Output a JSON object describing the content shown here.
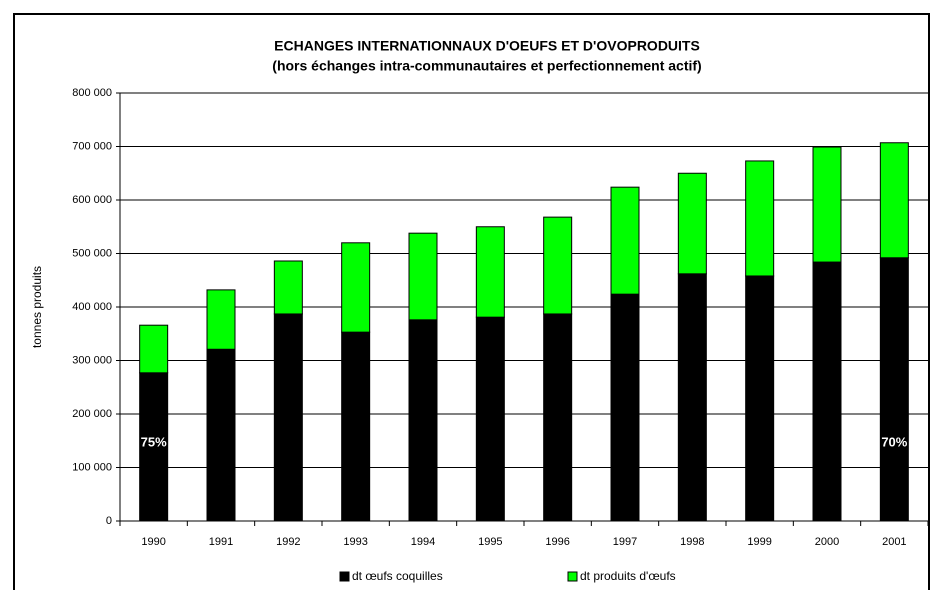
{
  "chart_data": {
    "type": "stacked_bar",
    "title": "ECHANGES INTERNATIONNAUX D'OEUFS ET D'OVOPRODUITS",
    "subtitle": "(hors échanges intra-communautaires et perfectionnement actif)",
    "y_label": "tonnes produits",
    "categories": [
      "1990",
      "1991",
      "1992",
      "1993",
      "1994",
      "1995",
      "1996",
      "1997",
      "1998",
      "1999",
      "2000",
      "2001"
    ],
    "series": [
      {
        "name": "dt œufs coquilles",
        "color": "#000000",
        "values": [
          277000,
          321000,
          387000,
          353000,
          376000,
          381000,
          387000,
          424000,
          462000,
          458000,
          484000,
          492000
        ]
      },
      {
        "name": "dt produits d'œufs",
        "color": "#00ff00",
        "values": [
          89000,
          111000,
          99000,
          167000,
          162000,
          169000,
          181000,
          200000,
          188000,
          215000,
          215000,
          215000
        ]
      }
    ],
    "annotations": [
      {
        "text": "75%",
        "category": "1990"
      },
      {
        "text": "70%",
        "category": "2001"
      }
    ],
    "ylim": [
      0,
      800000
    ],
    "yticks": [
      0,
      {
        "value": 100000,
        "label": "100 000"
      },
      {
        "value": 200000,
        "label": "200 000"
      },
      {
        "value": 300000,
        "label": "300 000"
      },
      {
        "value": 400000,
        "label": "400 000"
      },
      {
        "value": 500000,
        "label": "500 000"
      },
      {
        "value": 600000,
        "label": "600 000"
      },
      {
        "value": 700000,
        "label": "700 000"
      },
      {
        "value": 800000,
        "label": "800 000"
      }
    ],
    "grid": true,
    "legend": "bottom"
  }
}
